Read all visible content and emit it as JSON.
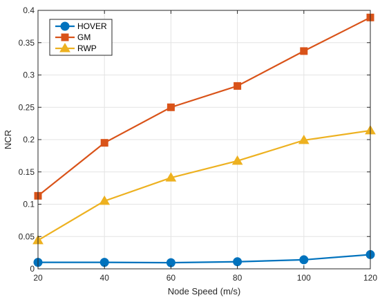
{
  "chart_data": {
    "type": "line",
    "title": "",
    "xlabel": "Node Speed (m/s)",
    "ylabel": "NCR",
    "x": [
      20,
      40,
      60,
      80,
      100,
      120
    ],
    "xlim": [
      20,
      120
    ],
    "ylim": [
      0,
      0.4
    ],
    "xticks": [
      "20",
      "40",
      "60",
      "80",
      "100",
      "120"
    ],
    "yticks": [
      "0",
      "0.05",
      "0.1",
      "0.15",
      "0.2",
      "0.25",
      "0.3",
      "0.35",
      "0.4"
    ],
    "grid": true,
    "legend_position": "top-left",
    "series": [
      {
        "name": "HOVER",
        "marker": "circle",
        "color": "#0072BD",
        "values": [
          0.01,
          0.01,
          0.0095,
          0.011,
          0.014,
          0.022
        ]
      },
      {
        "name": "GM",
        "marker": "square",
        "color": "#D95319",
        "values": [
          0.113,
          0.195,
          0.25,
          0.283,
          0.337,
          0.389
        ]
      },
      {
        "name": "RWP",
        "marker": "triangle",
        "color": "#EDB120",
        "values": [
          0.044,
          0.105,
          0.141,
          0.167,
          0.199,
          0.214
        ]
      }
    ]
  }
}
